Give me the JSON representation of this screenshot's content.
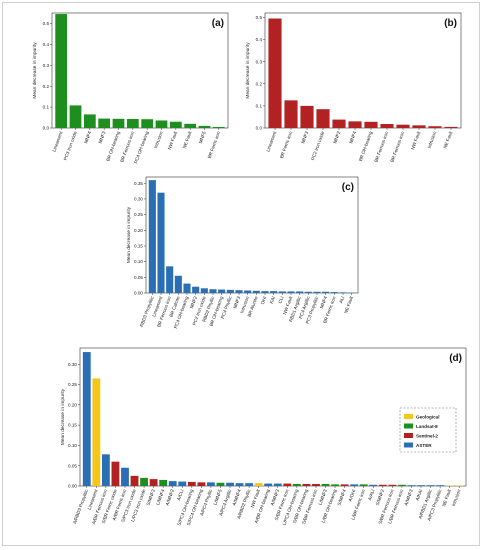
{
  "chart_data": [
    {
      "type": "bar",
      "panel_label": "(a)",
      "ylabel": "Mean decrease in impurity",
      "ylim": [
        0,
        0.55
      ],
      "yticks": [
        0.0,
        0.1,
        0.2,
        0.3,
        0.4,
        0.5
      ],
      "ytick_labels": [
        "0.0",
        "0.1",
        "0.2",
        "0.3",
        "0.4",
        "0.5"
      ],
      "color": "#1e8f1e",
      "categories": [
        "Lineament",
        "PC3 Iron oxide",
        "MNF4",
        "MNF3",
        "BR OH-bearing",
        "BR Ferrous iron",
        "PC4 OH-bearing",
        "Intrusion",
        "NW Fault",
        "NE Fault",
        "MNF5",
        "BR Ferric iron"
      ],
      "values": [
        0.545,
        0.108,
        0.065,
        0.045,
        0.044,
        0.043,
        0.042,
        0.036,
        0.03,
        0.02,
        0.01,
        0.005
      ]
    },
    {
      "type": "bar",
      "panel_label": "(b)",
      "ylabel": "Mean decrease in impurity",
      "ylim": [
        0,
        0.52
      ],
      "yticks": [
        0.0,
        0.1,
        0.2,
        0.3,
        0.4,
        0.5
      ],
      "ytick_labels": [
        "0.0",
        "0.1",
        "0.2",
        "0.3",
        "0.4",
        "0.5"
      ],
      "color": "#b22222",
      "categories": [
        "Lineament",
        "BR Ferric iron",
        "MNF3",
        "PC2 Iron oxide",
        "MNF2",
        "MNF4",
        "BR OH-bearing",
        "BR Ferrous iron",
        "BR Ferrous iron",
        "NW Fault",
        "Intrusion",
        "NE Fault"
      ],
      "values": [
        0.495,
        0.125,
        0.1,
        0.085,
        0.038,
        0.03,
        0.028,
        0.018,
        0.015,
        0.012,
        0.008,
        0.005
      ]
    },
    {
      "type": "bar",
      "panel_label": "(c)",
      "ylabel": "Mean decrease in impurity",
      "ylim": [
        0,
        0.37
      ],
      "yticks": [
        0.0,
        0.05,
        0.1,
        0.15,
        0.2,
        0.25,
        0.3,
        0.35
      ],
      "ytick_labels": [
        "0.00",
        "0.05",
        "0.10",
        "0.15",
        "0.20",
        "0.25",
        "0.30",
        "0.35"
      ],
      "color": "#2a6fb5",
      "categories": [
        "RBD3 Propylitic",
        "Lineament",
        "BR Ferrous iron",
        "BR Calcite",
        "PC4 OH-bearing",
        "MNF2",
        "PC2 Iron oxide",
        "RBD2 Phyllic",
        "BR OH-bearing",
        "PC4 Phyllic",
        "MNF3",
        "Intrusion",
        "BR Alunite",
        "OHI",
        "KAI",
        "CLI",
        "NW Fault",
        "RBD1 Argillic",
        "PC4 Argillic",
        "PC3 Propylitic",
        "MNF4",
        "BR Ferric iron",
        "ALI",
        "NE Fault"
      ],
      "values": [
        0.36,
        0.32,
        0.085,
        0.055,
        0.03,
        0.02,
        0.015,
        0.012,
        0.011,
        0.01,
        0.009,
        0.008,
        0.007,
        0.006,
        0.006,
        0.005,
        0.005,
        0.005,
        0.004,
        0.004,
        0.004,
        0.003,
        0.002,
        0.001
      ]
    },
    {
      "type": "bar",
      "panel_label": "(d)",
      "ylabel": "Mean decrease in impurity",
      "ylim": [
        0,
        0.34
      ],
      "yticks": [
        0.0,
        0.05,
        0.1,
        0.15,
        0.2,
        0.25,
        0.3
      ],
      "ytick_labels": [
        "0.00",
        "0.05",
        "0.10",
        "0.15",
        "0.20",
        "0.25",
        "0.30"
      ],
      "legend": [
        {
          "name": "Geological",
          "color": "#f5c518"
        },
        {
          "name": "Landsat-8",
          "color": "#1e8f1e"
        },
        {
          "name": "Sentinel-2",
          "color": "#b22222"
        },
        {
          "name": "ASTER",
          "color": "#2a6fb5"
        }
      ],
      "legend_position": "right",
      "categories": [
        "A/RBD3 Propylitic",
        "Lineament",
        "A/BR Ferrous iron",
        "S/BR Ferric oxide",
        "A/BR Ferric iron",
        "S/PC3 Iron oxide",
        "L/PC3 Iron oxide",
        "S/MNF3",
        "L/MNF4",
        "A/MNF2",
        "A/CLI",
        "S/PC4 OH-bearing",
        "S/PC4 OH-bearing",
        "A/PC4 Phyllic",
        "L/MNF5",
        "A/PC4 Argillic",
        "A/MNF4",
        "A/RBD2 Phyllic",
        "NW Fault",
        "A/BR OH-bearing",
        "A/MNF3",
        "S/BR Ferric iron",
        "L/PC4 OH-bearing",
        "S/BR OH-bearing",
        "S/BR Ferrous iron",
        "L/MNF3",
        "L/BR OH-bearing",
        "S/MNF4",
        "A/OHI",
        "L/BR Ferric iron",
        "A/ALI",
        "S/MNF2",
        "S/BR Ferrous iron",
        "L/BR Ferrous iron",
        "A/MNF3",
        "A/KAI",
        "A/RBD1 Argillic",
        "A/PC3 Propylitic",
        "NE Fault",
        "Intrusion"
      ],
      "series_groups": [
        "ASTER",
        "Geological",
        "ASTER",
        "Sentinel-2",
        "ASTER",
        "Sentinel-2",
        "Landsat-8",
        "Sentinel-2",
        "Landsat-8",
        "ASTER",
        "ASTER",
        "Sentinel-2",
        "Sentinel-2",
        "ASTER",
        "Landsat-8",
        "ASTER",
        "ASTER",
        "ASTER",
        "Geological",
        "ASTER",
        "ASTER",
        "Sentinel-2",
        "Landsat-8",
        "Sentinel-2",
        "Sentinel-2",
        "Landsat-8",
        "Landsat-8",
        "Sentinel-2",
        "ASTER",
        "Landsat-8",
        "ASTER",
        "Sentinel-2",
        "Sentinel-2",
        "Landsat-8",
        "ASTER",
        "ASTER",
        "ASTER",
        "ASTER",
        "Geological",
        "Geological"
      ],
      "values": [
        0.33,
        0.265,
        0.078,
        0.06,
        0.045,
        0.025,
        0.02,
        0.017,
        0.015,
        0.012,
        0.011,
        0.01,
        0.009,
        0.009,
        0.008,
        0.008,
        0.007,
        0.007,
        0.007,
        0.006,
        0.006,
        0.006,
        0.005,
        0.005,
        0.005,
        0.005,
        0.004,
        0.004,
        0.004,
        0.004,
        0.003,
        0.003,
        0.003,
        0.003,
        0.002,
        0.002,
        0.002,
        0.002,
        0.001,
        0.001
      ]
    }
  ]
}
